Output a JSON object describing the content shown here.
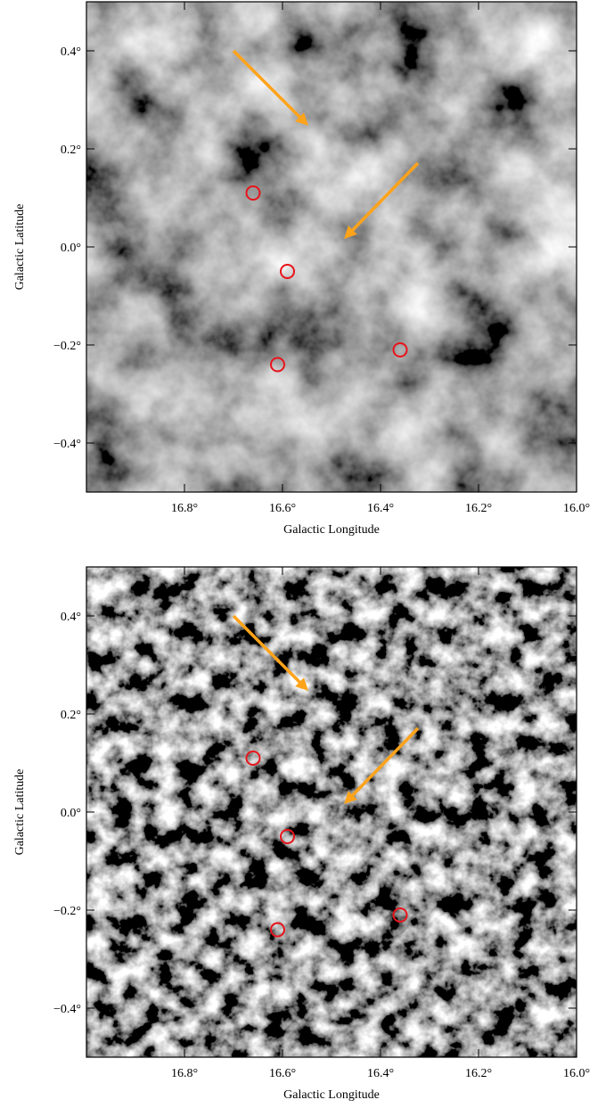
{
  "chart_data": [
    {
      "type": "image",
      "xlabel": "Galactic Longitude",
      "ylabel": "Galactic Latitude",
      "xlim": [
        17.0,
        16.0
      ],
      "ylim": [
        -0.5,
        0.5
      ],
      "xticks": [
        {
          "value": 16.8,
          "label": "16.8°"
        },
        {
          "value": 16.6,
          "label": "16.6°"
        },
        {
          "value": 16.4,
          "label": "16.4°"
        },
        {
          "value": 16.2,
          "label": "16.2°"
        },
        {
          "value": 16.0,
          "label": "16.0°"
        }
      ],
      "yticks": [
        {
          "value": 0.4,
          "label": "0.4°"
        },
        {
          "value": 0.2,
          "label": "0.2°"
        },
        {
          "value": 0.0,
          "label": "0.0°"
        },
        {
          "value": -0.2,
          "label": "−0.2°"
        },
        {
          "value": -0.4,
          "label": "−0.4°"
        }
      ],
      "x": [
        16.66,
        16.59,
        16.61,
        16.36
      ],
      "y": [
        0.11,
        -0.05,
        -0.24,
        -0.21
      ],
      "color": "#e8141b"
    },
    {
      "type": "image",
      "xlabel": "Galactic Longitude",
      "ylabel": "Galactic Latitude",
      "xlim": [
        17.0,
        16.0
      ],
      "ylim": [
        -0.5,
        0.5
      ],
      "xticks": [
        {
          "value": 16.8,
          "label": "16.8°"
        },
        {
          "value": 16.6,
          "label": "16.6°"
        },
        {
          "value": 16.4,
          "label": "16.4°"
        },
        {
          "value": 16.2,
          "label": "16.2°"
        },
        {
          "value": 16.0,
          "label": "16.0°"
        }
      ],
      "yticks": [
        {
          "value": 0.4,
          "label": "0.4°"
        },
        {
          "value": 0.2,
          "label": "0.2°"
        },
        {
          "value": 0.0,
          "label": "0.0°"
        },
        {
          "value": -0.2,
          "label": "−0.2°"
        },
        {
          "value": -0.4,
          "label": "−0.4°"
        }
      ],
      "x": [
        16.66,
        16.59,
        16.61,
        16.36
      ],
      "y": [
        0.11,
        -0.05,
        -0.24,
        -0.21
      ],
      "color": "#e8141b"
    }
  ]
}
